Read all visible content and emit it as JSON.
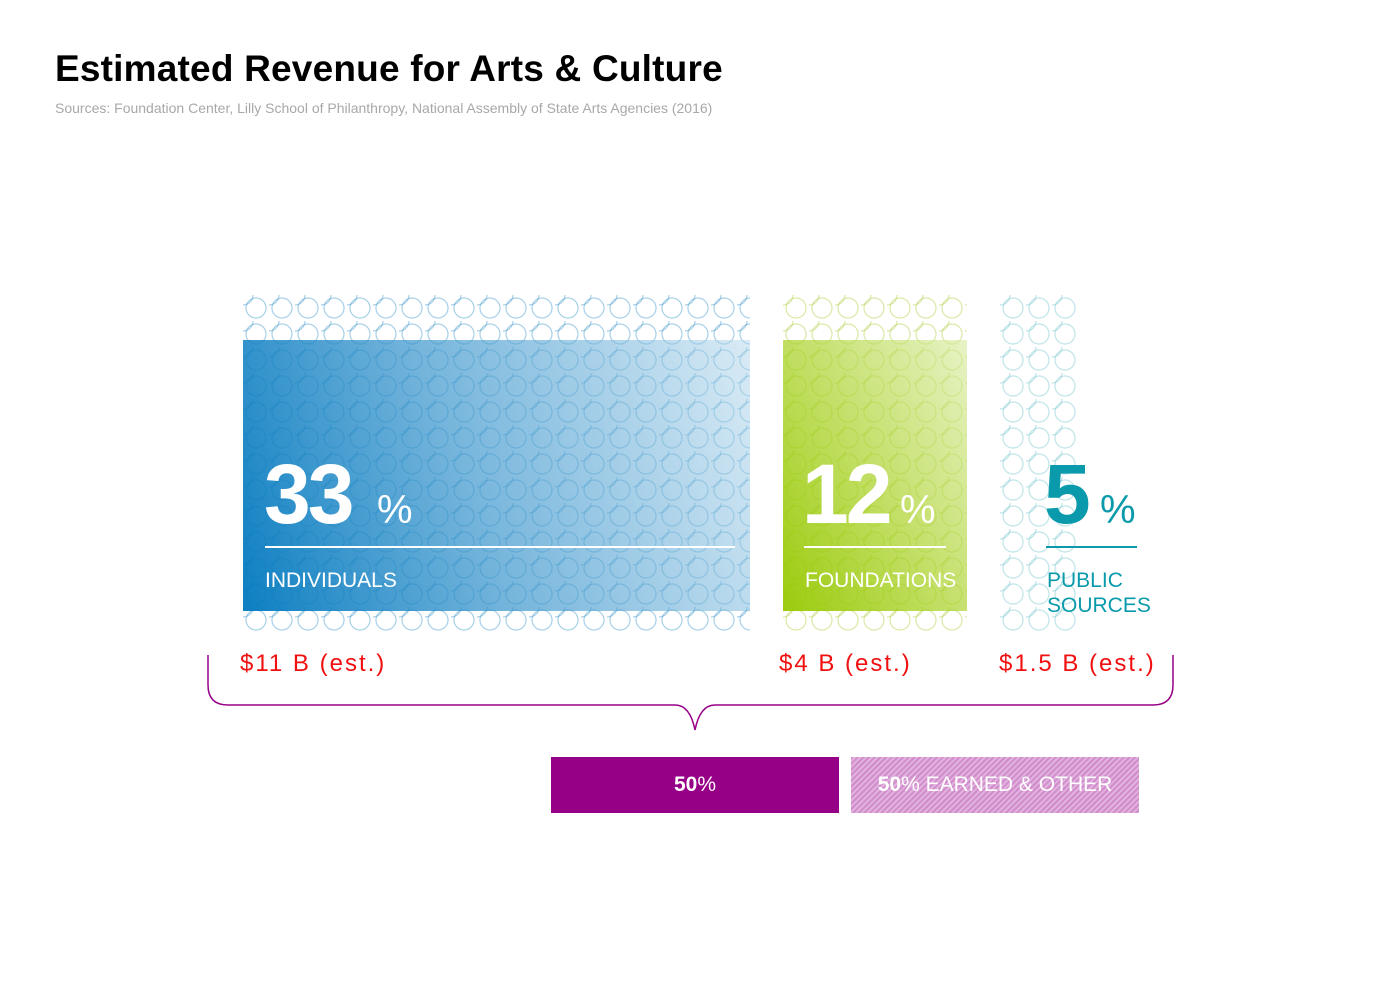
{
  "title": "Estimated Revenue for Arts & Culture",
  "sources": "Sources: Foundation Center, Lilly School of Philanthropy, National Assembly of State Arts Agencies (2016)",
  "chart_data": {
    "type": "bar",
    "title": "Estimated Revenue for Arts & Culture",
    "categories": [
      "INDIVIDUALS",
      "FOUNDATIONS",
      "PUBLIC SOURCES"
    ],
    "values": [
      33,
      12,
      5
    ],
    "value_labels": [
      "33",
      "12",
      "5"
    ],
    "pct_symbol": "%",
    "amounts": [
      "$11 B (est.)",
      "$4 B (est.)",
      "$1.5 B (est.)"
    ],
    "colors": [
      "#1a8ac4",
      "#9ccb1a",
      "#0a9aab"
    ],
    "summary": {
      "contributed_value": "50",
      "contributed_pct": "%",
      "earned_value": "50",
      "earned_pct": "%",
      "earned_label": " EARNED & OTHER",
      "contributed_color": "#960087",
      "earned_color": "#d796d2"
    }
  }
}
